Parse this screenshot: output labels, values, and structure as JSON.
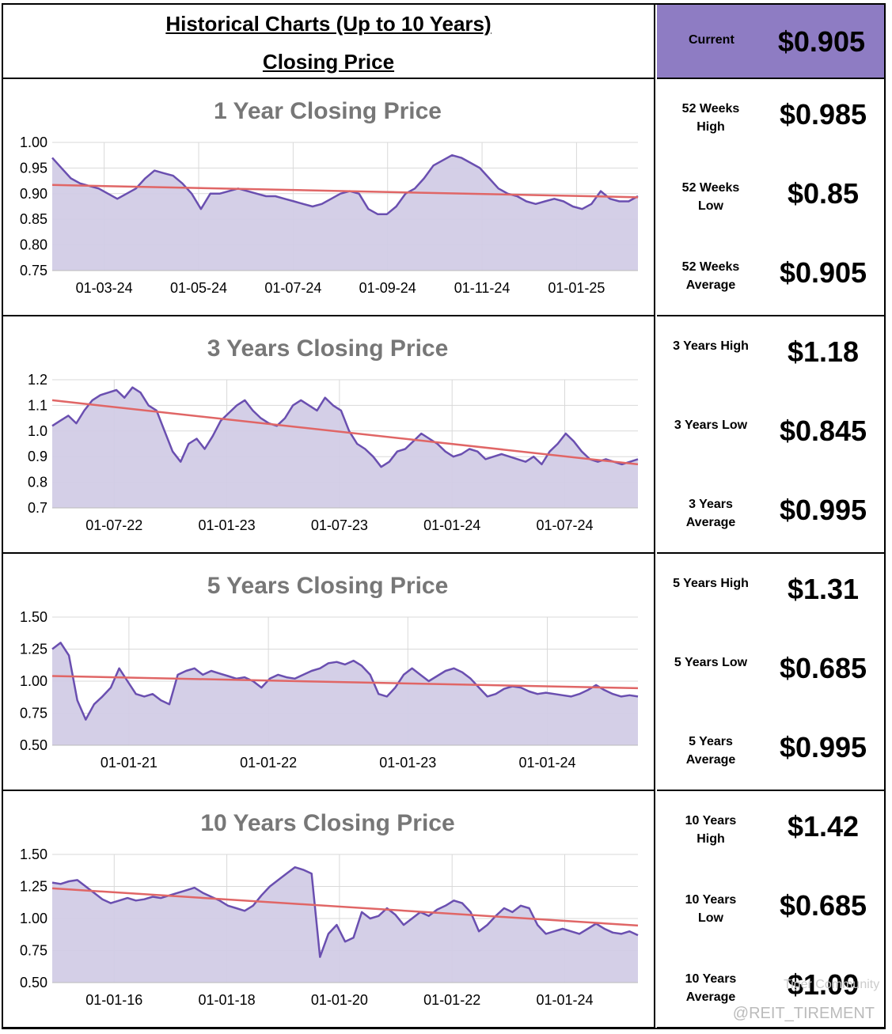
{
  "header": {
    "title": "Historical Charts (Up to 10 Years)",
    "subtitle": "Closing Price",
    "current_label": "Current",
    "current_value": "$0.905"
  },
  "colors": {
    "accent": "#8e7cc3",
    "line": "#6a4fb0",
    "fill": "#d2cce6",
    "trend": "#e06666",
    "grid": "#d9d9d9"
  },
  "panels": [
    {
      "stats": [
        {
          "label": "52 Weeks High",
          "value": "$0.985"
        },
        {
          "label": "52 Weeks Low",
          "value": "$0.85"
        },
        {
          "label": "52 Weeks Average",
          "value": "$0.905"
        }
      ]
    },
    {
      "stats": [
        {
          "label": "3 Years High",
          "value": "$1.18"
        },
        {
          "label": "3 Years Low",
          "value": "$0.845"
        },
        {
          "label": "3 Years Average",
          "value": "$0.995"
        }
      ]
    },
    {
      "stats": [
        {
          "label": "5 Years High",
          "value": "$1.31"
        },
        {
          "label": "5 Years Low",
          "value": "$0.685"
        },
        {
          "label": "5 Years Average",
          "value": "$0.995"
        }
      ]
    },
    {
      "stats": [
        {
          "label": "10 Years High",
          "value": "$1.42"
        },
        {
          "label": "10 Years Low",
          "value": "$0.685"
        },
        {
          "label": "10 Years Average",
          "value": "$1.09"
        }
      ]
    }
  ],
  "watermark": "@REIT_TIREMENT",
  "watermark_brand": "Tiger Community",
  "chart_data": [
    {
      "type": "area",
      "title": "1 Year Closing Price",
      "xlabel": "",
      "ylabel": "",
      "ylim": [
        0.75,
        1.0
      ],
      "yticks": [
        "1.00",
        "0.95",
        "0.90",
        "0.85",
        "0.80",
        "0.75"
      ],
      "xticks": [
        "01-03-24",
        "01-05-24",
        "01-07-24",
        "01-09-24",
        "01-11-24",
        "01-01-25"
      ],
      "grid": true,
      "series": [
        {
          "values": [
            0.97,
            0.95,
            0.93,
            0.92,
            0.915,
            0.91,
            0.9,
            0.89,
            0.9,
            0.91,
            0.93,
            0.945,
            0.94,
            0.935,
            0.92,
            0.9,
            0.87,
            0.9,
            0.9,
            0.905,
            0.91,
            0.905,
            0.9,
            0.895,
            0.895,
            0.89,
            0.885,
            0.88,
            0.875,
            0.88,
            0.89,
            0.9,
            0.905,
            0.9,
            0.87,
            0.86,
            0.86,
            0.875,
            0.9,
            0.91,
            0.93,
            0.955,
            0.965,
            0.975,
            0.97,
            0.96,
            0.95,
            0.93,
            0.91,
            0.9,
            0.895,
            0.885,
            0.88,
            0.885,
            0.89,
            0.885,
            0.875,
            0.87,
            0.88,
            0.905,
            0.89,
            0.885,
            0.885,
            0.895
          ]
        }
      ],
      "trend": {
        "start": 0.917,
        "end": 0.893
      }
    },
    {
      "type": "area",
      "title": "3 Years Closing Price",
      "xlabel": "",
      "ylabel": "",
      "ylim": [
        0.7,
        1.2
      ],
      "yticks": [
        "1.2",
        "1.1",
        "1.0",
        "0.9",
        "0.8",
        "0.7"
      ],
      "xticks": [
        "01-07-22",
        "01-01-23",
        "01-07-23",
        "01-01-24",
        "01-07-24"
      ],
      "grid": true,
      "series": [
        {
          "values": [
            1.02,
            1.04,
            1.06,
            1.03,
            1.08,
            1.12,
            1.14,
            1.15,
            1.16,
            1.13,
            1.17,
            1.15,
            1.1,
            1.08,
            1.0,
            0.92,
            0.88,
            0.95,
            0.97,
            0.93,
            0.98,
            1.04,
            1.07,
            1.1,
            1.12,
            1.08,
            1.05,
            1.03,
            1.02,
            1.05,
            1.1,
            1.12,
            1.1,
            1.08,
            1.13,
            1.1,
            1.08,
            1.0,
            0.95,
            0.93,
            0.9,
            0.86,
            0.88,
            0.92,
            0.93,
            0.96,
            0.99,
            0.97,
            0.95,
            0.92,
            0.9,
            0.91,
            0.93,
            0.92,
            0.89,
            0.9,
            0.91,
            0.9,
            0.89,
            0.88,
            0.9,
            0.87,
            0.92,
            0.95,
            0.99,
            0.96,
            0.92,
            0.89,
            0.88,
            0.89,
            0.88,
            0.87,
            0.88,
            0.89
          ]
        }
      ],
      "trend": {
        "start": 1.12,
        "end": 0.87
      }
    },
    {
      "type": "area",
      "title": "5 Years Closing Price",
      "xlabel": "",
      "ylabel": "",
      "ylim": [
        0.5,
        1.5
      ],
      "yticks": [
        "1.50",
        "1.25",
        "1.00",
        "0.75",
        "0.50"
      ],
      "xticks": [
        "01-01-21",
        "01-01-22",
        "01-01-23",
        "01-01-24"
      ],
      "grid": true,
      "series": [
        {
          "values": [
            1.25,
            1.3,
            1.2,
            0.85,
            0.7,
            0.82,
            0.88,
            0.95,
            1.1,
            1.0,
            0.9,
            0.88,
            0.9,
            0.85,
            0.82,
            1.05,
            1.08,
            1.1,
            1.05,
            1.08,
            1.06,
            1.04,
            1.02,
            1.03,
            1.0,
            0.95,
            1.02,
            1.05,
            1.03,
            1.02,
            1.05,
            1.08,
            1.1,
            1.14,
            1.15,
            1.13,
            1.16,
            1.12,
            1.05,
            0.9,
            0.88,
            0.95,
            1.05,
            1.1,
            1.05,
            1.0,
            1.04,
            1.08,
            1.1,
            1.07,
            1.02,
            0.95,
            0.88,
            0.9,
            0.94,
            0.96,
            0.95,
            0.92,
            0.9,
            0.91,
            0.9,
            0.89,
            0.88,
            0.9,
            0.93,
            0.97,
            0.93,
            0.9,
            0.88,
            0.89,
            0.88
          ]
        }
      ],
      "trend": {
        "start": 1.04,
        "end": 0.945
      }
    },
    {
      "type": "area",
      "title": "10 Years Closing Price",
      "xlabel": "",
      "ylabel": "",
      "ylim": [
        0.5,
        1.5
      ],
      "yticks": [
        "1.50",
        "1.25",
        "1.00",
        "0.75",
        "0.50"
      ],
      "xticks": [
        "01-01-16",
        "01-01-18",
        "01-01-20",
        "01-01-22",
        "01-01-24"
      ],
      "grid": true,
      "series": [
        {
          "values": [
            1.28,
            1.27,
            1.29,
            1.3,
            1.25,
            1.2,
            1.15,
            1.12,
            1.14,
            1.16,
            1.14,
            1.15,
            1.17,
            1.16,
            1.18,
            1.2,
            1.22,
            1.24,
            1.2,
            1.17,
            1.14,
            1.1,
            1.08,
            1.06,
            1.1,
            1.18,
            1.25,
            1.3,
            1.35,
            1.4,
            1.38,
            1.35,
            0.7,
            0.88,
            0.95,
            0.82,
            0.85,
            1.05,
            1.0,
            1.02,
            1.08,
            1.03,
            0.95,
            1.0,
            1.05,
            1.02,
            1.07,
            1.1,
            1.14,
            1.12,
            1.05,
            0.9,
            0.95,
            1.02,
            1.08,
            1.05,
            1.1,
            1.08,
            0.95,
            0.88,
            0.9,
            0.92,
            0.9,
            0.88,
            0.92,
            0.96,
            0.92,
            0.89,
            0.88,
            0.9,
            0.87
          ]
        }
      ],
      "trend": {
        "start": 1.235,
        "end": 0.945
      }
    }
  ]
}
